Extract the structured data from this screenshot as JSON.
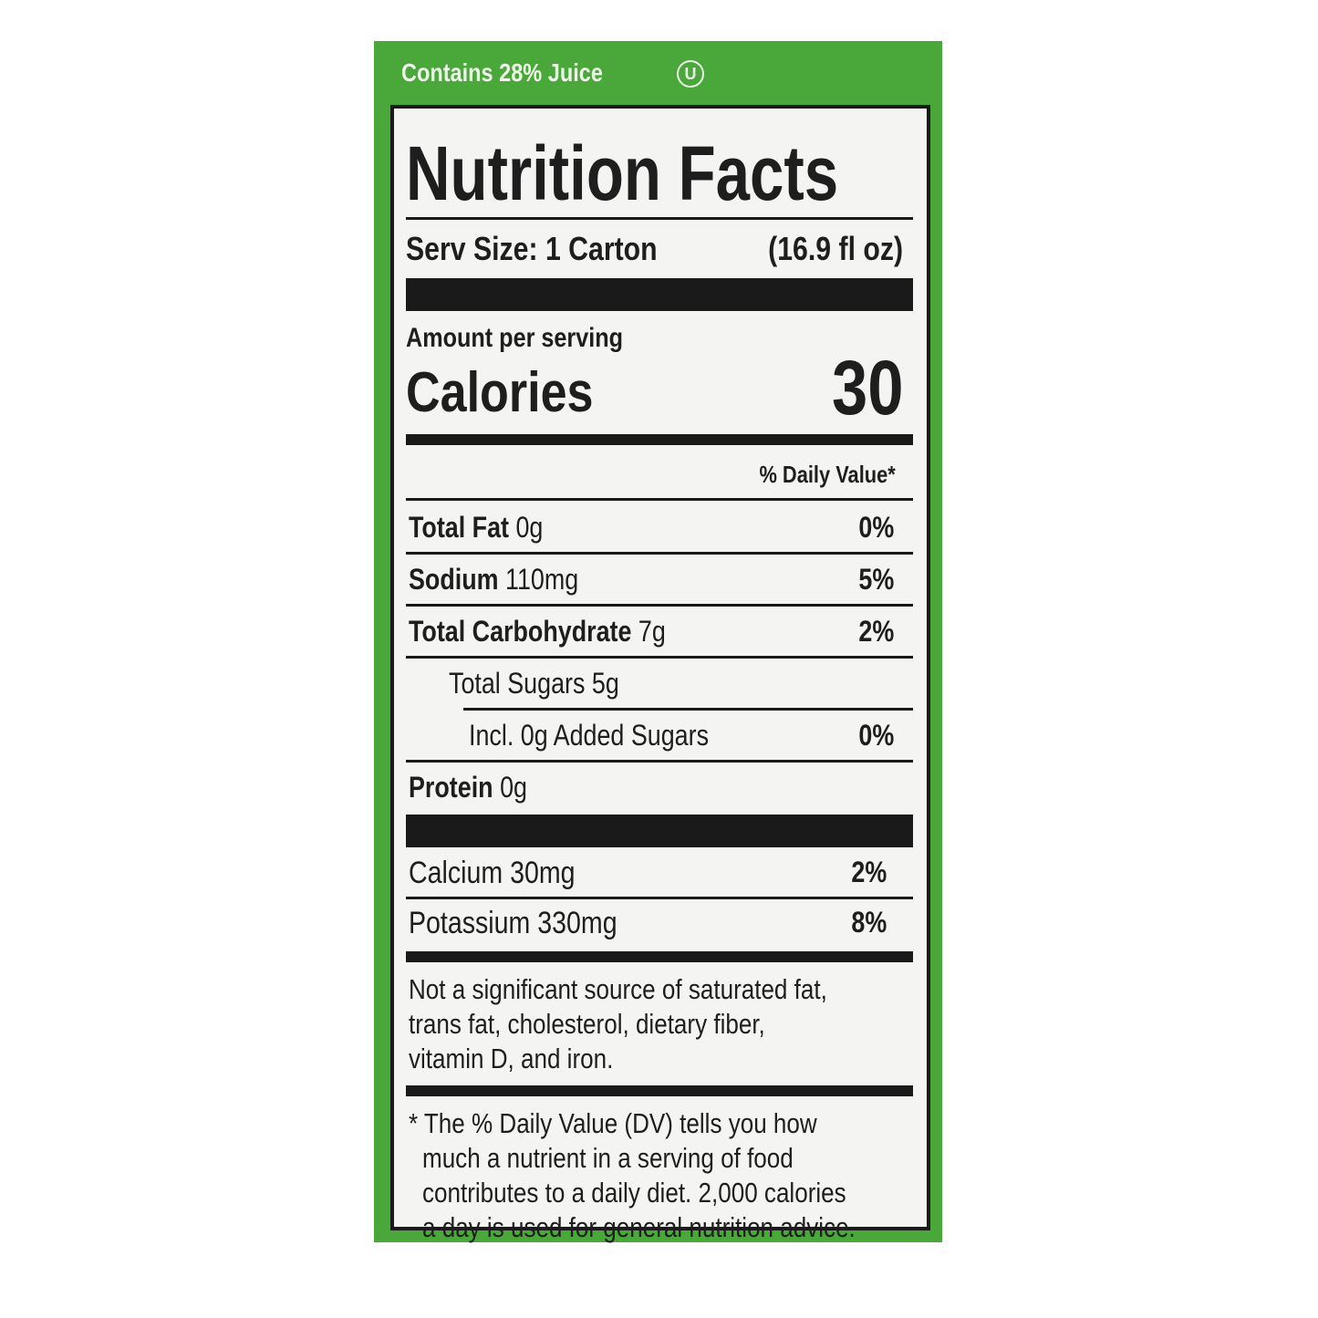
{
  "header": {
    "text": "Contains 28% Juice",
    "symbol": "U"
  },
  "label": {
    "title": "Nutrition Facts",
    "serving": "Serv Size: 1 Carton",
    "serving_volume": "(16.9 fl oz)",
    "amount_per_serving": "Amount per serving",
    "calories_label": "Calories",
    "calories_value": "30",
    "dv_header": "% Daily Value*",
    "nutrients": [
      {
        "name": "Total Fat",
        "amount": "0g",
        "dv": "0%"
      },
      {
        "name": "Sodium",
        "amount": "110mg",
        "dv": "5%"
      },
      {
        "name": "Total Carbohydrate",
        "amount": "7g",
        "dv": "2%"
      },
      {
        "amount": "Total Sugars 5g"
      },
      {
        "amount": "Incl. 0g Added Sugars",
        "dv": "0%"
      },
      {
        "name": "Protein",
        "amount": "0g"
      }
    ],
    "minerals": [
      {
        "amount": "Calcium 30mg",
        "dv": "2%"
      },
      {
        "amount": "Potassium 330mg",
        "dv": "8%"
      }
    ],
    "not_significant": [
      "Not a significant source of saturated fat,",
      "trans fat, cholesterol, dietary fiber,",
      "vitamin D, and iron."
    ],
    "footnote": [
      "* The % Daily Value (DV) tells you how",
      "much a nutrient in a serving of food",
      "contributes to a daily diet. 2,000 calories",
      "a day is used for general nutrition advice."
    ]
  }
}
